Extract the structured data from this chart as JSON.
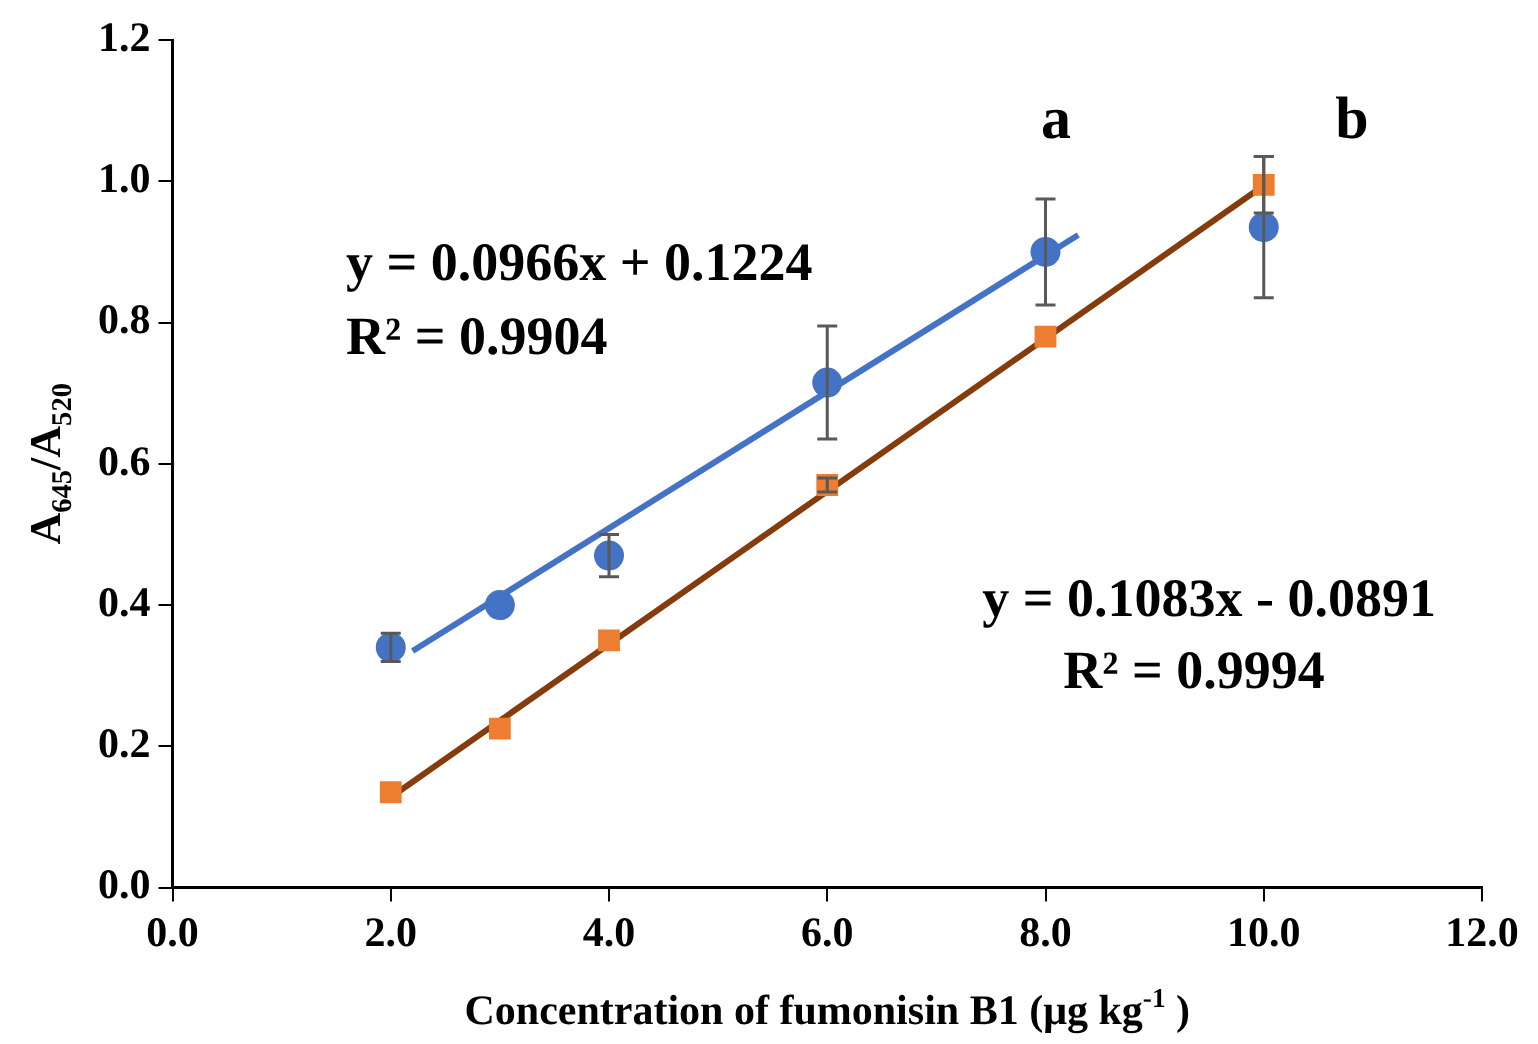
{
  "chart_data": {
    "type": "scatter",
    "xlabel": "Concentration of fumonisin B1 (μg kg$^{-1}$ )",
    "ylabel": "A$_{645}$/A$_{520}$",
    "xlim": [
      0,
      12
    ],
    "xticks": [
      {
        "value": 0,
        "label": "0.0"
      },
      {
        "value": 2,
        "label": "2.0"
      },
      {
        "value": 4,
        "label": "4.0"
      },
      {
        "value": 6,
        "label": "6.0"
      },
      {
        "value": 8,
        "label": "8.0"
      },
      {
        "value": 10,
        "label": "10.0"
      },
      {
        "value": 12,
        "label": "12.0"
      }
    ],
    "ylim": [
      0,
      1.2
    ],
    "yticks": [
      {
        "value": 0,
        "label": "0.0"
      },
      {
        "value": 0.2,
        "label": "0.2"
      },
      {
        "value": 0.4,
        "label": "0.4"
      },
      {
        "value": 0.6,
        "label": "0.6"
      },
      {
        "value": 0.8,
        "label": "0.8"
      },
      {
        "value": 1,
        "label": "1.0"
      },
      {
        "value": 1.2,
        "label": "1.2"
      }
    ],
    "grid": false,
    "legend": false,
    "series": [
      {
        "marker": "circle",
        "color": "#4472c4",
        "x": [
          2,
          3,
          4,
          6,
          8,
          10
        ],
        "values": [
          0.34,
          0.4,
          0.47,
          0.715,
          0.9,
          0.935
        ],
        "errors": [
          0.02,
          null,
          0.03,
          0.08,
          0.075,
          0.1
        ]
      },
      {
        "marker": "square",
        "color": "#ed7d31",
        "x": [
          2,
          3,
          4,
          6,
          8,
          10
        ],
        "values": [
          0.135,
          0.225,
          0.35,
          0.57,
          0.78,
          0.995
        ],
        "errors": [
          null,
          null,
          null,
          0.01,
          null,
          0.04
        ]
      },
      {
        "type": "line",
        "marker": "none",
        "color": "#4472c4",
        "x": [
          2.2,
          8.3
        ],
        "values": [
          0.335,
          0.924
        ]
      },
      {
        "type": "line",
        "marker": "none",
        "color": "#843c0c",
        "x": [
          2,
          10
        ],
        "values": [
          0.128,
          0.994
        ]
      }
    ],
    "annotations": [
      "y = 0.0966x + 0.1224",
      "R² = 0.9904",
      "y = 0.1083x - 0.0891",
      "R² = 0.9994",
      "a",
      "b"
    ]
  }
}
